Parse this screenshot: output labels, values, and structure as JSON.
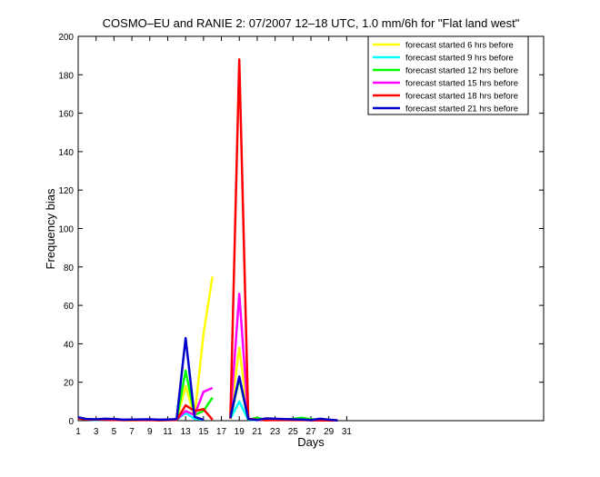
{
  "chart_data": {
    "type": "line",
    "title": "COSMO–EU and RANIE 2: 07/2007 12–18 UTC, 1.0 mm/6h for \"Flat land west\"",
    "xlabel": "Days",
    "ylabel": "Frequency bias",
    "xlim": [
      1,
      53
    ],
    "ylim": [
      0,
      200
    ],
    "xticks": [
      1,
      3,
      5,
      7,
      9,
      11,
      13,
      15,
      17,
      19,
      21,
      23,
      25,
      27,
      29,
      31
    ],
    "yticks": [
      0,
      20,
      40,
      60,
      80,
      100,
      120,
      140,
      160,
      180,
      200
    ],
    "legend_position": "top-right",
    "grid": false,
    "series": [
      {
        "name": "forecast started 6 hrs before",
        "color": "#ffff00",
        "points": [
          [
            1,
            1.5
          ],
          [
            2,
            0.8
          ],
          [
            3,
            0.5
          ],
          [
            4,
            0.6
          ],
          [
            5,
            0.8
          ],
          [
            6,
            0.4
          ],
          [
            7,
            0.2
          ],
          [
            9,
            0.6
          ],
          [
            10,
            0.3
          ],
          [
            11,
            0.5
          ],
          [
            12,
            0.4
          ],
          [
            13,
            18
          ],
          [
            14,
            2
          ],
          [
            15,
            45
          ],
          [
            16,
            75
          ],
          [
            null,
            null
          ],
          [
            18,
            2
          ],
          [
            19,
            38
          ],
          [
            20,
            1
          ],
          [
            21,
            0.5
          ],
          [
            22,
            0.2
          ],
          [
            23,
            0.8
          ],
          [
            24,
            0.6
          ],
          [
            26,
            0.5
          ],
          [
            27,
            0.4
          ],
          [
            28,
            0.3
          ],
          [
            29,
            0.2
          ],
          [
            30,
            0.1
          ]
        ]
      },
      {
        "name": "forecast started 9 hrs before",
        "color": "#00ffff",
        "points": [
          [
            1,
            1.2
          ],
          [
            2,
            0.6
          ],
          [
            3,
            0.4
          ],
          [
            4,
            0.5
          ],
          [
            5,
            0.5
          ],
          [
            6,
            0.3
          ],
          [
            9,
            0.5
          ],
          [
            10,
            0.2
          ],
          [
            11,
            0.3
          ],
          [
            12,
            0.4
          ],
          [
            13,
            4
          ],
          [
            14,
            1
          ],
          [
            15,
            0.5
          ],
          [
            null,
            null
          ],
          [
            18,
            1
          ],
          [
            19,
            10
          ],
          [
            20,
            0.5
          ],
          [
            21,
            0.3
          ],
          [
            22,
            0.4
          ],
          [
            23,
            0.5
          ],
          [
            24,
            0.4
          ],
          [
            26,
            0.6
          ],
          [
            27,
            0.3
          ],
          [
            28,
            0.5
          ],
          [
            29,
            0.2
          ],
          [
            30,
            0.1
          ]
        ]
      },
      {
        "name": "forecast started 12 hrs before",
        "color": "#00ff00",
        "points": [
          [
            1,
            1.3
          ],
          [
            2,
            0.7
          ],
          [
            3,
            0.5
          ],
          [
            4,
            0.6
          ],
          [
            5,
            0.6
          ],
          [
            6,
            0.4
          ],
          [
            9,
            0.5
          ],
          [
            10,
            0.3
          ],
          [
            11,
            0.4
          ],
          [
            12,
            0.5
          ],
          [
            13,
            26
          ],
          [
            14,
            3
          ],
          [
            15,
            5
          ],
          [
            16,
            12
          ],
          [
            null,
            null
          ],
          [
            18,
            1
          ],
          [
            19,
            22
          ],
          [
            20,
            0.5
          ],
          [
            21,
            1.5
          ],
          [
            22,
            0.3
          ],
          [
            23,
            0.6
          ],
          [
            24,
            0.4
          ],
          [
            26,
            1.5
          ],
          [
            27,
            0.8
          ],
          [
            28,
            0.3
          ],
          [
            29,
            0.2
          ],
          [
            30,
            0.1
          ]
        ]
      },
      {
        "name": "forecast started 15 hrs before",
        "color": "#ff00ff",
        "points": [
          [
            1,
            1.4
          ],
          [
            2,
            0.7
          ],
          [
            3,
            0.6
          ],
          [
            4,
            0.5
          ],
          [
            5,
            0.6
          ],
          [
            6,
            0.3
          ],
          [
            9,
            0.6
          ],
          [
            10,
            0.3
          ],
          [
            11,
            0.4
          ],
          [
            12,
            0.6
          ],
          [
            13,
            5
          ],
          [
            14,
            3
          ],
          [
            15,
            15
          ],
          [
            16,
            17
          ],
          [
            null,
            null
          ],
          [
            18,
            2
          ],
          [
            19,
            66
          ],
          [
            20,
            1
          ],
          [
            21,
            0.4
          ],
          [
            22,
            0.3
          ],
          [
            23,
            0.5
          ],
          [
            24,
            0.4
          ],
          [
            26,
            0.5
          ],
          [
            27,
            0.3
          ],
          [
            28,
            0.2
          ],
          [
            29,
            0.1
          ],
          [
            30,
            0.1
          ]
        ]
      },
      {
        "name": "forecast started 18 hrs before",
        "color": "#ff0000",
        "points": [
          [
            1,
            1.2
          ],
          [
            2,
            0.6
          ],
          [
            3,
            0.5
          ],
          [
            4,
            0.5
          ],
          [
            5,
            0.4
          ],
          [
            6,
            0.3
          ],
          [
            9,
            0.4
          ],
          [
            10,
            0.2
          ],
          [
            11,
            0.3
          ],
          [
            12,
            0.4
          ],
          [
            13,
            8
          ],
          [
            14,
            5
          ],
          [
            15,
            6
          ],
          [
            16,
            0.5
          ],
          [
            null,
            null
          ],
          [
            18,
            1
          ],
          [
            19,
            188
          ],
          [
            20,
            1
          ],
          [
            21,
            0.5
          ],
          [
            22,
            0.3
          ],
          [
            23,
            0.4
          ],
          [
            24,
            0.3
          ],
          [
            26,
            0.4
          ],
          [
            27,
            0.2
          ],
          [
            28,
            0.2
          ],
          [
            29,
            0.1
          ],
          [
            30,
            0.1
          ]
        ]
      },
      {
        "name": "forecast started 21 hrs before",
        "color": "#0000cc",
        "points": [
          [
            1,
            1.8
          ],
          [
            2,
            0.8
          ],
          [
            3,
            0.7
          ],
          [
            4,
            1.0
          ],
          [
            5,
            0.9
          ],
          [
            6,
            0.5
          ],
          [
            9,
            0.7
          ],
          [
            10,
            0.5
          ],
          [
            11,
            0.6
          ],
          [
            12,
            0.8
          ],
          [
            13,
            43
          ],
          [
            14,
            2
          ],
          [
            15,
            0.5
          ],
          [
            null,
            null
          ],
          [
            18,
            1.5
          ],
          [
            19,
            23
          ],
          [
            20,
            0.8
          ],
          [
            21,
            0.4
          ],
          [
            22,
            1.2
          ],
          [
            23,
            1.0
          ],
          [
            24,
            0.8
          ],
          [
            26,
            0.6
          ],
          [
            27,
            0.3
          ],
          [
            28,
            1.0
          ],
          [
            29,
            0.5
          ],
          [
            30,
            0.2
          ]
        ]
      }
    ]
  }
}
